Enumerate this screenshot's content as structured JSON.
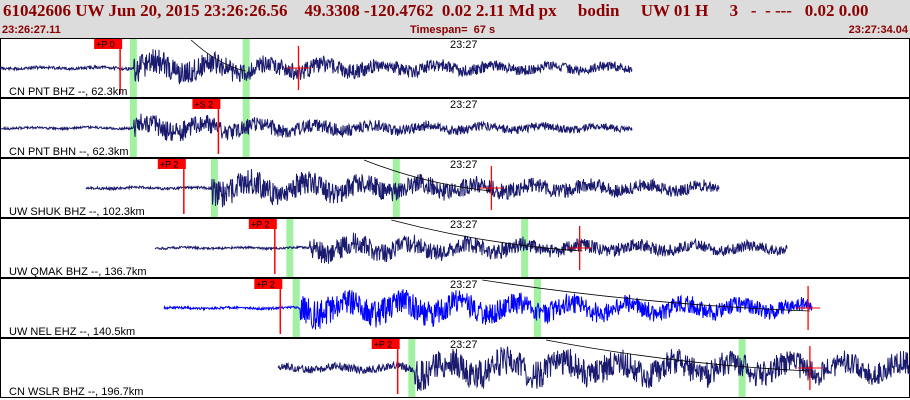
{
  "header": {
    "title": "61042606 UW Jun 20, 2015 23:26:26.56    49.3308 -120.4762  0.02 2.11 Md px     bodin     UW 01 H     3   -  - ---   0.02 0.00",
    "start_time": "23:26:27.11",
    "timespan": "Timespan=  67 s",
    "end_time": "23:27:34.04"
  },
  "colors": {
    "trace": "#1a1a6e",
    "trace_highlight": "#0000ff",
    "pick_label_bg": "#ff0000",
    "pick_line": "#ff0000",
    "window_marker": "#90ee90",
    "header_text": "#8b0000"
  },
  "time_tick_label": "23:27",
  "panels": [
    {
      "label": "CN PNT BHZ --, 62.3km",
      "pick": "+P 0",
      "pick_time": 0.132,
      "green": [
        0.146,
        0.27
      ],
      "red_marks": [
        0.328
      ],
      "trace": {
        "start": 0.0,
        "end": 0.695,
        "onset": 0.147,
        "pre": 1.5,
        "post": 12,
        "decay": 0.36,
        "seed": 11
      },
      "curve": [
        0.21,
        0.27
      ]
    },
    {
      "label": "CN PNT BHN --, 62.3km",
      "pick": "+S 2",
      "pick_time": 0.24,
      "green": [
        0.146,
        0.27
      ],
      "red_marks": [],
      "trace": {
        "start": 0.0,
        "end": 0.695,
        "onset": 0.147,
        "pre": 1.2,
        "post": 10,
        "decay": 0.35,
        "seed": 23
      }
    },
    {
      "label": "UW SHUK BHZ --, 102.3km",
      "pick": "+P 2",
      "pick_time": 0.202,
      "green": [
        0.235,
        0.435
      ],
      "red_marks": [
        0.54
      ],
      "trace": {
        "start": 0.095,
        "end": 0.79,
        "onset": 0.232,
        "pre": 1.3,
        "post": 13,
        "decay": 0.5,
        "seed": 37
      },
      "curve": [
        0.4,
        0.54
      ]
    },
    {
      "label": "UW QMAK BHZ --, 136.7km",
      "pick": "+P 2",
      "pick_time": 0.302,
      "green": [
        0.318,
        0.576
      ],
      "red_marks": [
        0.637
      ],
      "trace": {
        "start": 0.17,
        "end": 0.865,
        "onset": 0.34,
        "pre": 1.1,
        "post": 10,
        "decay": 0.55,
        "seed": 49
      },
      "curve": [
        0.43,
        0.64
      ]
    },
    {
      "label": "UW NEL EHZ --, 140.5km",
      "pick": "+P 2",
      "pick_time": 0.308,
      "green": [
        0.325,
        0.59
      ],
      "red_marks": [
        0.888
      ],
      "trace": {
        "start": 0.18,
        "end": 0.892,
        "onset": 0.33,
        "pre": 1.2,
        "post": 14,
        "decay": 0.7,
        "seed": 61,
        "blue": true
      },
      "curve": [
        0.53,
        0.89
      ]
    },
    {
      "label": "CN WSLR BHZ --, 196.7km",
      "pick": "+P 2",
      "pick_time": 0.437,
      "green": [
        0.452,
        0.815
      ],
      "red_marks": [
        0.89
      ],
      "trace": {
        "start": 0.305,
        "end": 1.0,
        "onset": 0.455,
        "pre": 4,
        "post": 12,
        "decay": 1.2,
        "seed": 73
      },
      "curve": [
        0.6,
        0.89
      ]
    }
  ]
}
